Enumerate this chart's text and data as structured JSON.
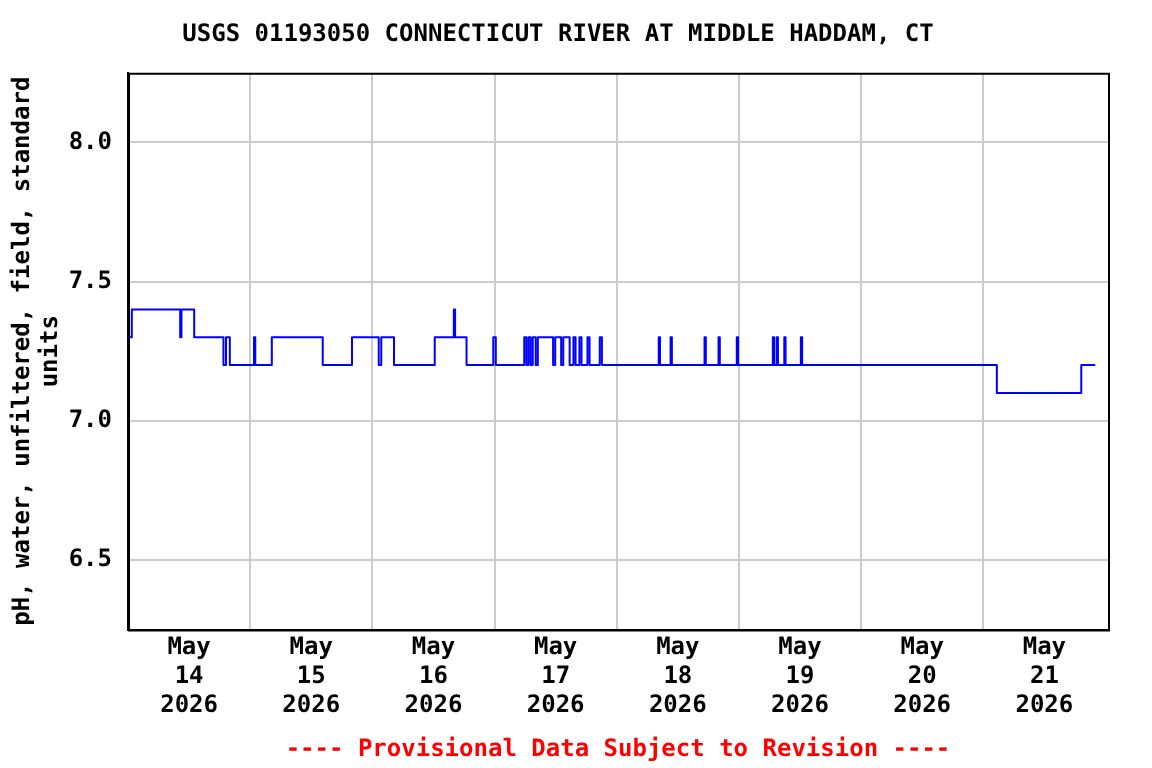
{
  "chart_data": {
    "type": "step",
    "title": "USGS 01193050 CONNECTICUT RIVER AT MIDDLE HADDAM, CT",
    "ylabel": "pH, water, unfiltered, field, standard units",
    "annotations": [
      "---- Provisional Data Subject to Revision ----"
    ],
    "x": [
      "2026-05-14T00:00",
      "2026-05-14T00:45",
      "2026-05-14T10:15",
      "2026-05-14T10:30",
      "2026-05-14T13:00",
      "2026-05-14T18:45",
      "2026-05-14T19:15",
      "2026-05-14T20:00",
      "2026-05-15T00:45",
      "2026-05-15T01:00",
      "2026-05-15T04:15",
      "2026-05-15T14:15",
      "2026-05-15T20:00",
      "2026-05-16T01:15",
      "2026-05-16T01:45",
      "2026-05-16T04:15",
      "2026-05-16T12:15",
      "2026-05-16T16:00",
      "2026-05-16T16:15",
      "2026-05-16T18:30",
      "2026-05-16T23:45",
      "2026-05-17T00:15",
      "2026-05-17T05:50",
      "2026-05-17T06:15",
      "2026-05-17T06:40",
      "2026-05-17T07:05",
      "2026-05-17T07:30",
      "2026-05-17T08:05",
      "2026-05-17T08:30",
      "2026-05-17T11:30",
      "2026-05-17T11:55",
      "2026-05-17T13:05",
      "2026-05-17T13:30",
      "2026-05-17T14:45",
      "2026-05-17T15:30",
      "2026-05-17T15:55",
      "2026-05-17T16:40",
      "2026-05-17T17:05",
      "2026-05-17T18:15",
      "2026-05-17T18:40",
      "2026-05-17T20:40",
      "2026-05-17T21:05",
      "2026-05-18T08:15",
      "2026-05-18T08:30",
      "2026-05-18T10:35",
      "2026-05-18T10:50",
      "2026-05-18T17:15",
      "2026-05-18T17:30",
      "2026-05-18T20:00",
      "2026-05-18T20:15",
      "2026-05-18T23:35",
      "2026-05-18T23:50",
      "2026-05-19T06:40",
      "2026-05-19T06:55",
      "2026-05-19T07:25",
      "2026-05-19T07:40",
      "2026-05-19T08:55",
      "2026-05-19T09:10",
      "2026-05-19T12:10",
      "2026-05-19T12:25",
      "2026-05-21T02:40",
      "2026-05-21T19:15",
      "2026-05-21T22:00"
    ],
    "series": [
      {
        "color": "#0000ff",
        "values": [
          7.3,
          7.4,
          7.3,
          7.4,
          7.3,
          7.2,
          7.3,
          7.2,
          7.3,
          7.2,
          7.3,
          7.2,
          7.3,
          7.2,
          7.3,
          7.2,
          7.3,
          7.4,
          7.3,
          7.2,
          7.3,
          7.2,
          7.3,
          7.2,
          7.3,
          7.2,
          7.3,
          7.2,
          7.3,
          7.2,
          7.3,
          7.2,
          7.3,
          7.2,
          7.3,
          7.2,
          7.3,
          7.2,
          7.3,
          7.2,
          7.3,
          7.2,
          7.3,
          7.2,
          7.3,
          7.2,
          7.3,
          7.2,
          7.3,
          7.2,
          7.3,
          7.2,
          7.3,
          7.2,
          7.3,
          7.2,
          7.3,
          7.2,
          7.3,
          7.2,
          7.1,
          7.2,
          7.2
        ]
      }
    ],
    "xlim": [
      "2026-05-14T00:00",
      "2026-05-22T00:30"
    ],
    "xticks": [
      {
        "value": "2026-05-14T12:00",
        "label": "May 14 2026"
      },
      {
        "value": "2026-05-15T00:00",
        "label": null
      },
      {
        "value": "2026-05-15T12:00",
        "label": "May 15 2026"
      },
      {
        "value": "2026-05-16T00:00",
        "label": null
      },
      {
        "value": "2026-05-16T12:00",
        "label": "May 16 2026"
      },
      {
        "value": "2026-05-17T00:00",
        "label": null
      },
      {
        "value": "2026-05-17T12:00",
        "label": "May 17 2026"
      },
      {
        "value": "2026-05-18T00:00",
        "label": null
      },
      {
        "value": "2026-05-18T12:00",
        "label": "May 18 2026"
      },
      {
        "value": "2026-05-19T00:00",
        "label": null
      },
      {
        "value": "2026-05-19T12:00",
        "label": "May 19 2026"
      },
      {
        "value": "2026-05-20T00:00",
        "label": null
      },
      {
        "value": "2026-05-20T12:00",
        "label": "May 20 2026"
      },
      {
        "value": "2026-05-21T00:00",
        "label": null
      },
      {
        "value": "2026-05-21T12:00",
        "label": "May 21 2026"
      }
    ],
    "ylim": [
      6.25,
      8.25
    ],
    "yticks": [
      {
        "value": 6.5,
        "label": "6.5"
      },
      {
        "value": 7,
        "label": "7.0"
      },
      {
        "value": 7.5,
        "label": "7.5"
      },
      {
        "value": 8,
        "label": "8.0"
      }
    ],
    "grid": true
  }
}
